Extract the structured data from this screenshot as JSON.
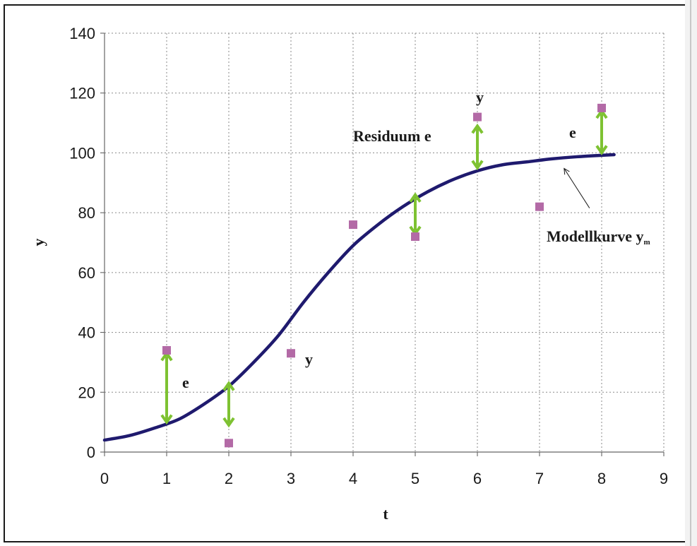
{
  "chart_data": {
    "type": "scatter",
    "xlabel": "t",
    "ylabel": "y",
    "xlim": [
      0,
      9
    ],
    "ylim": [
      0,
      140
    ],
    "xticks": [
      "0",
      "1",
      "2",
      "3",
      "4",
      "5",
      "6",
      "7",
      "8",
      "9"
    ],
    "yticks": [
      "0",
      "20",
      "40",
      "60",
      "80",
      "100",
      "120",
      "140"
    ],
    "grid": true,
    "legend": "none",
    "series": [
      {
        "kind": "points",
        "color": "#b36aa6",
        "marker": "square",
        "x": [
          1,
          2,
          3,
          4,
          5,
          6,
          7,
          8
        ],
        "y": [
          34,
          3,
          33,
          76,
          72,
          112,
          82,
          115
        ]
      },
      {
        "kind": "line",
        "color": "#1f1a6e",
        "x": [
          0,
          0.4,
          0.8,
          1.2,
          1.6,
          2.0,
          2.4,
          2.8,
          3.2,
          3.6,
          4.0,
          4.4,
          4.8,
          5.2,
          5.6,
          6.0,
          6.4,
          6.8,
          7.2,
          7.6,
          8.0,
          8.2
        ],
        "y": [
          4,
          5.5,
          8,
          11,
          16,
          22,
          30,
          39,
          50,
          60,
          69,
          76,
          82,
          87,
          91,
          94,
          96,
          97,
          98,
          98.7,
          99.2,
          99.4
        ]
      }
    ],
    "residuals": {
      "color": "#7ec232",
      "items": [
        {
          "x": 1,
          "from": 10,
          "to": 33
        },
        {
          "x": 2,
          "from": 9,
          "to": 23
        },
        {
          "x": 5,
          "from": 73,
          "to": 86
        },
        {
          "x": 6,
          "from": 95,
          "to": 109
        },
        {
          "x": 8,
          "from": 100,
          "to": 114
        }
      ]
    },
    "annotations": {
      "e1": "e",
      "y1": "y",
      "residuum": "Residuum e",
      "y2": "y",
      "e2": "e",
      "model": "Modellkurve y",
      "model_sub": "m"
    },
    "pointer_arrow": {
      "from": [
        7.35,
        82.5
      ],
      "to": [
        7.35,
        94.8
      ]
    }
  }
}
